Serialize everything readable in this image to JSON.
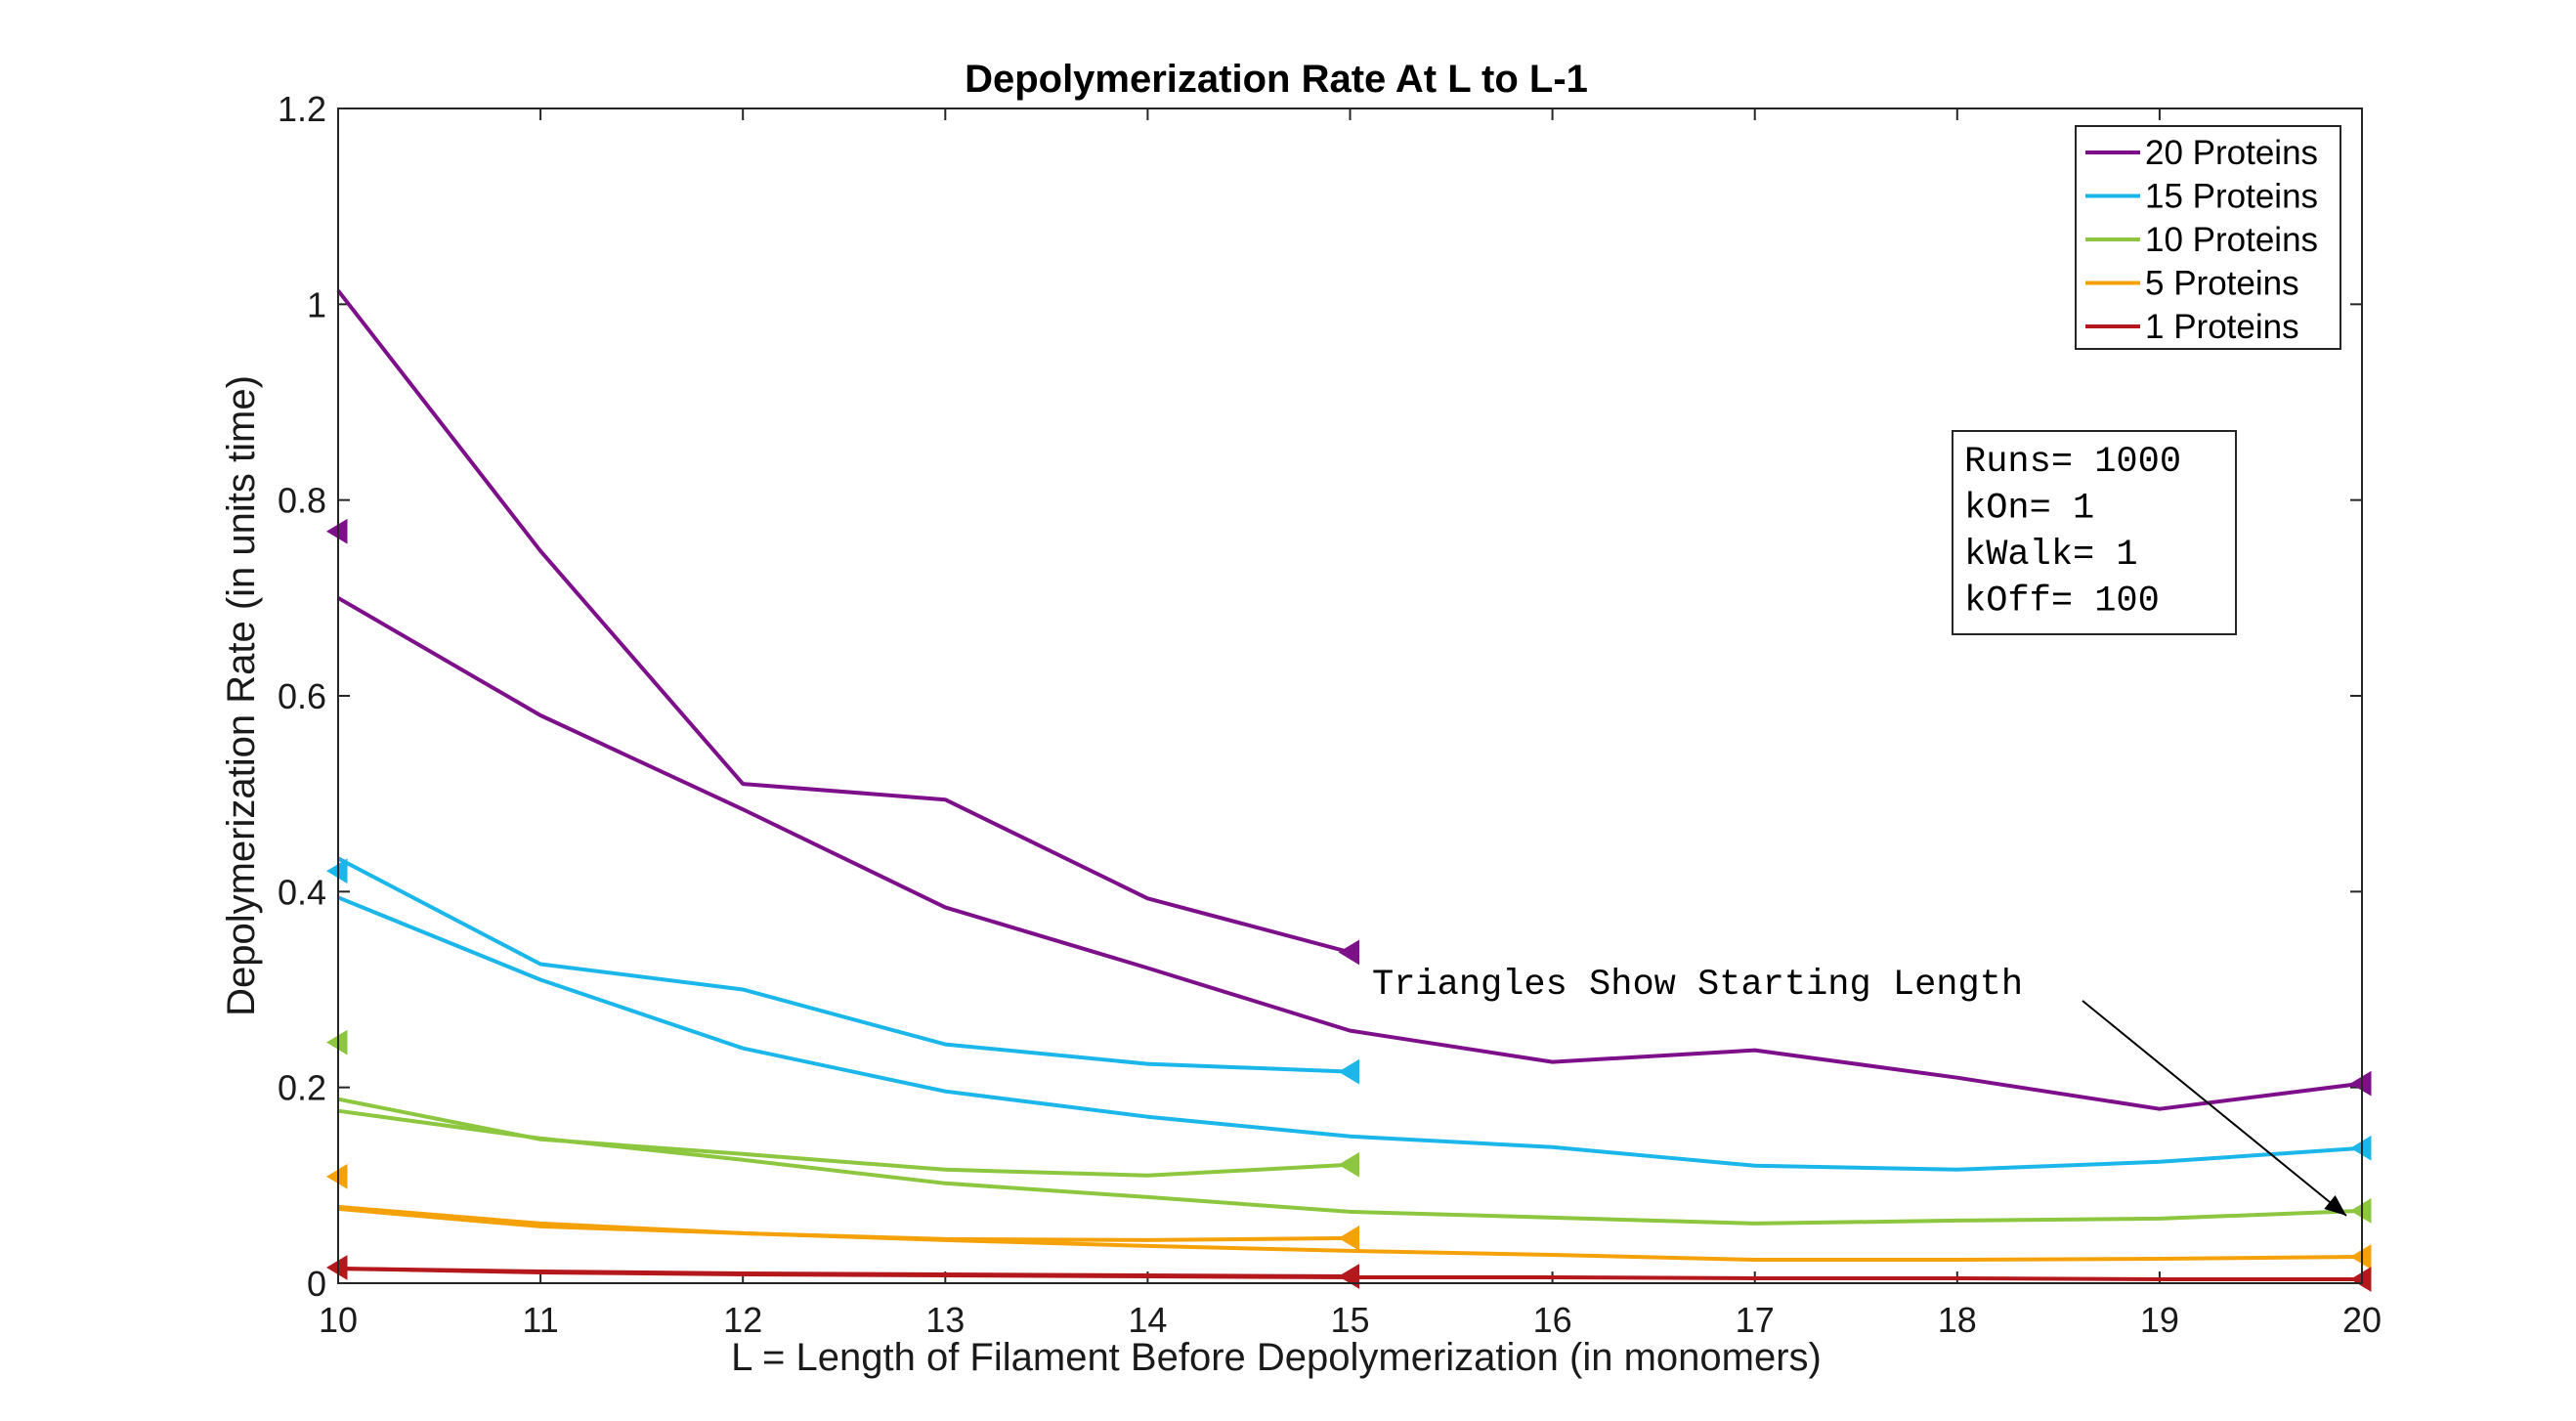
{
  "chart_data": {
    "type": "line",
    "title": "Depolymerization Rate At L to L-1",
    "xlabel": "L = Length of Filament Before Depolymerization (in monomers)",
    "ylabel": "Depolymerization Rate (in units time)",
    "xlim": [
      10,
      20
    ],
    "ylim": [
      0,
      1.2
    ],
    "xticks": [
      "10",
      "11",
      "12",
      "13",
      "14",
      "15",
      "16",
      "17",
      "18",
      "19",
      "20"
    ],
    "yticks": [
      "0",
      "0.2",
      "0.4",
      "0.6",
      "0.8",
      "1",
      "1.2"
    ],
    "grid": false,
    "legend_position": "top-right",
    "series": [
      {
        "name": "20 Proteins",
        "color": "#7E0F8A",
        "start_length": 20,
        "x": [
          10,
          11,
          12,
          13,
          14,
          15,
          16,
          17,
          18,
          19,
          20
        ],
        "y": [
          0.7,
          0.58,
          0.484,
          0.384,
          0.322,
          0.258,
          0.226,
          0.238,
          0.21,
          0.178,
          0.204
        ]
      },
      {
        "name": "20 Proteins",
        "color": "#7E0F8A",
        "start_length": 15,
        "x": [
          10,
          11,
          12,
          13,
          14,
          15
        ],
        "y": [
          1.014,
          0.748,
          0.51,
          0.494,
          0.393,
          0.338
        ]
      },
      {
        "name": "20 Proteins",
        "color": "#7E0F8A",
        "start_length": 10,
        "x": [
          10
        ],
        "y": [
          0.768
        ]
      },
      {
        "name": "15 Proteins",
        "color": "#1BB6EA",
        "start_length": 20,
        "x": [
          10,
          11,
          12,
          13,
          14,
          15,
          16,
          17,
          18,
          19,
          20
        ],
        "y": [
          0.394,
          0.31,
          0.24,
          0.196,
          0.17,
          0.15,
          0.139,
          0.12,
          0.116,
          0.124,
          0.138
        ]
      },
      {
        "name": "15 Proteins",
        "color": "#1BB6EA",
        "start_length": 15,
        "x": [
          10,
          11,
          12,
          13,
          14,
          15
        ],
        "y": [
          0.434,
          0.326,
          0.3,
          0.244,
          0.224,
          0.216
        ]
      },
      {
        "name": "15 Proteins",
        "color": "#1BB6EA",
        "start_length": 10,
        "x": [
          10
        ],
        "y": [
          0.421
        ]
      },
      {
        "name": "10 Proteins",
        "color": "#8DC63F",
        "start_length": 20,
        "x": [
          10,
          11,
          12,
          13,
          14,
          15,
          16,
          17,
          18,
          19,
          20
        ],
        "y": [
          0.176,
          0.148,
          0.126,
          0.102,
          0.088,
          0.073,
          0.067,
          0.061,
          0.064,
          0.066,
          0.074
        ]
      },
      {
        "name": "10 Proteins",
        "color": "#8DC63F",
        "start_length": 15,
        "x": [
          10,
          11,
          12,
          13,
          14,
          15
        ],
        "y": [
          0.188,
          0.147,
          0.132,
          0.116,
          0.11,
          0.121
        ]
      },
      {
        "name": "10 Proteins",
        "color": "#8DC63F",
        "start_length": 10,
        "x": [
          10
        ],
        "y": [
          0.246
        ]
      },
      {
        "name": "5 Proteins",
        "color": "#F5A20A",
        "start_length": 20,
        "x": [
          10,
          11,
          12,
          13,
          14,
          15,
          16,
          17,
          18,
          19,
          20
        ],
        "y": [
          0.078,
          0.061,
          0.051,
          0.044,
          0.038,
          0.033,
          0.029,
          0.024,
          0.024,
          0.025,
          0.027
        ]
      },
      {
        "name": "5 Proteins",
        "color": "#F5A20A",
        "start_length": 15,
        "x": [
          10,
          11,
          12,
          13,
          14,
          15
        ],
        "y": [
          0.076,
          0.058,
          0.051,
          0.045,
          0.044,
          0.046
        ]
      },
      {
        "name": "5 Proteins",
        "color": "#F5A20A",
        "start_length": 10,
        "x": [
          10
        ],
        "y": [
          0.109
        ]
      },
      {
        "name": "1 Proteins",
        "color": "#B5181C",
        "start_length": 20,
        "x": [
          10,
          11,
          12,
          13,
          14,
          15,
          16,
          17,
          18,
          19,
          20
        ],
        "y": [
          0.015,
          0.011,
          0.009,
          0.008,
          0.007,
          0.006,
          0.006,
          0.005,
          0.005,
          0.004,
          0.004
        ]
      },
      {
        "name": "1 Proteins",
        "color": "#B5181C",
        "start_length": 15,
        "x": [
          10,
          11,
          12,
          13,
          14,
          15
        ],
        "y": [
          0.015,
          0.012,
          0.01,
          0.009,
          0.008,
          0.007
        ]
      },
      {
        "name": "1 Proteins",
        "color": "#B5181C",
        "start_length": 10,
        "x": [
          10
        ],
        "y": [
          0.016
        ]
      }
    ],
    "legend": [
      {
        "label": "20 Proteins",
        "color": "#7E0F8A"
      },
      {
        "label": "15 Proteins",
        "color": "#1BB6EA"
      },
      {
        "label": "10 Proteins",
        "color": "#8DC63F"
      },
      {
        "label": "5 Proteins",
        "color": "#F5A20A"
      },
      {
        "label": "1 Proteins",
        "color": "#B5181C"
      }
    ],
    "parameter_box": [
      "Runs= 1000",
      "kOn= 1",
      "kWalk= 1",
      "kOff= 100"
    ],
    "annotation": {
      "text": "Triangles Show Starting Length",
      "arrow_to": {
        "x": 20,
        "y": 0.073
      }
    }
  }
}
